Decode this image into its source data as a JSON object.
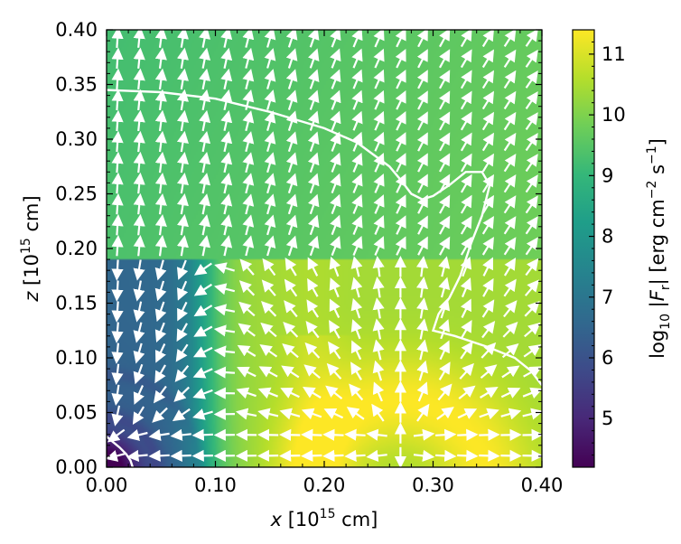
{
  "chart_data": {
    "type": "heatmap",
    "title": "",
    "xlabel": {
      "var": "x",
      "unit_pre": " [10",
      "exp": "15",
      "unit_post": " cm]"
    },
    "ylabel": {
      "var": "z",
      "unit_pre": " [10",
      "exp": "15",
      "unit_post": " cm]"
    },
    "xlim": [
      0.0,
      0.4
    ],
    "ylim": [
      0.0,
      0.4
    ],
    "xticks": [
      "0.00",
      "0.10",
      "0.20",
      "0.30",
      "0.40"
    ],
    "yticks": [
      "0.00",
      "0.05",
      "0.10",
      "0.15",
      "0.20",
      "0.25",
      "0.30",
      "0.35",
      "0.40"
    ],
    "colorbar": {
      "label": "log10 |Fr| [erg cm−2 s−1]",
      "label_parts": {
        "log": "log",
        "log_sub": "10",
        "bar_l": " |",
        "F": "F",
        "F_sub": "r",
        "bar_r": "| [erg cm",
        "exp1": "−2",
        "mid": " s",
        "exp2": "−1",
        "end": "]"
      },
      "range": [
        4.2,
        11.4
      ],
      "ticks": [
        "5",
        "6",
        "7",
        "8",
        "9",
        "10",
        "11"
      ],
      "colormap": "viridis"
    },
    "upper_region": {
      "z_min": 0.19,
      "log_flux": 9.5
    },
    "hot_shell": {
      "center_x": 0.27,
      "inner_radius": 0.1,
      "peak_log_flux": 11.2
    },
    "cavity": {
      "center": [
        0.0,
        0.0
      ],
      "min_log_flux": 4.3
    },
    "contours": [
      {
        "name": "upper-contour",
        "color": "#ffffff",
        "points": [
          [
            0.0,
            0.345
          ],
          [
            0.05,
            0.343
          ],
          [
            0.1,
            0.337
          ],
          [
            0.15,
            0.325
          ],
          [
            0.2,
            0.31
          ],
          [
            0.23,
            0.297
          ],
          [
            0.26,
            0.275
          ],
          [
            0.27,
            0.263
          ],
          [
            0.28,
            0.25
          ],
          [
            0.29,
            0.245
          ],
          [
            0.3,
            0.248
          ],
          [
            0.315,
            0.258
          ],
          [
            0.33,
            0.27
          ],
          [
            0.345,
            0.27
          ],
          [
            0.352,
            0.258
          ],
          [
            0.345,
            0.23
          ],
          [
            0.335,
            0.205
          ],
          [
            0.325,
            0.175
          ],
          [
            0.315,
            0.155
          ],
          [
            0.305,
            0.14
          ],
          [
            0.3,
            0.125
          ],
          [
            0.32,
            0.12
          ],
          [
            0.35,
            0.11
          ],
          [
            0.375,
            0.1
          ],
          [
            0.39,
            0.088
          ],
          [
            0.4,
            0.075
          ]
        ]
      },
      {
        "name": "cavity-contour",
        "color": "#ffffff",
        "points": [
          [
            0.0,
            0.028
          ],
          [
            0.006,
            0.023
          ],
          [
            0.012,
            0.018
          ],
          [
            0.018,
            0.012
          ],
          [
            0.022,
            0.006
          ],
          [
            0.024,
            0.0
          ]
        ]
      }
    ],
    "vector_field": {
      "description": "radiative flux direction",
      "color": "#ffffff",
      "grid_x": 20,
      "grid_z": 21
    }
  }
}
